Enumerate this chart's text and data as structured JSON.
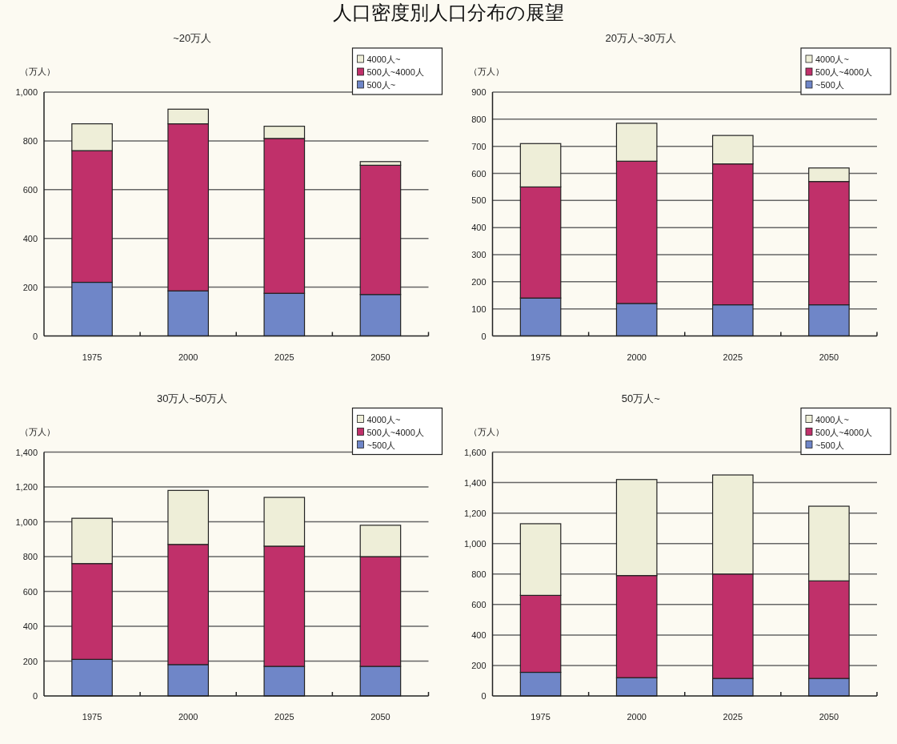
{
  "chart_data": [
    {
      "type": "bar",
      "stacked": true,
      "title": "人口密度別人口分布の展望",
      "subtitle": "~20万人",
      "ylabel": "（万人）",
      "categories": [
        "1975",
        "2000",
        "2025",
        "2050"
      ],
      "legend": "top right",
      "grid": "y",
      "ylim": [
        0,
        1000
      ],
      "yticks": [
        0,
        200,
        400,
        600,
        800,
        {
          "value": 1000,
          "label": "1,000"
        }
      ],
      "series": [
        {
          "name": "500人~",
          "color": "#6f86c8",
          "values": [
            220,
            185,
            175,
            170
          ]
        },
        {
          "name": "500人~4000人",
          "color": "#c0306a",
          "values": [
            540,
            685,
            635,
            530
          ]
        },
        {
          "name": "4000人~",
          "color": "#eeeed8",
          "values": [
            110,
            60,
            50,
            15
          ]
        }
      ]
    },
    {
      "type": "bar",
      "stacked": true,
      "subtitle": "20万人~30万人",
      "ylabel": "（万人）",
      "categories": [
        "1975",
        "2000",
        "2025",
        "2050"
      ],
      "legend": "top right",
      "grid": "y",
      "ylim": [
        0,
        900
      ],
      "yticks": [
        0,
        100,
        200,
        300,
        400,
        500,
        600,
        700,
        800,
        900
      ],
      "series": [
        {
          "name": "~500人",
          "color": "#6f86c8",
          "values": [
            140,
            120,
            115,
            115
          ]
        },
        {
          "name": "500人~4000人",
          "color": "#c0306a",
          "values": [
            410,
            525,
            520,
            455
          ]
        },
        {
          "name": "4000人~",
          "color": "#eeeed8",
          "values": [
            160,
            140,
            105,
            50
          ]
        }
      ]
    },
    {
      "type": "bar",
      "stacked": true,
      "subtitle": "30万人~50万人",
      "ylabel": "（万人）",
      "categories": [
        "1975",
        "2000",
        "2025",
        "2050"
      ],
      "legend": "top right",
      "grid": "y",
      "ylim": [
        0,
        1400
      ],
      "yticks": [
        0,
        200,
        400,
        600,
        800,
        {
          "value": 1000,
          "label": "1,000"
        },
        {
          "value": 1200,
          "label": "1,200"
        },
        {
          "value": 1400,
          "label": "1,400"
        }
      ],
      "series": [
        {
          "name": "~500人",
          "color": "#6f86c8",
          "values": [
            210,
            180,
            170,
            170
          ]
        },
        {
          "name": "500人~4000人",
          "color": "#c0306a",
          "values": [
            550,
            690,
            690,
            630
          ]
        },
        {
          "name": "4000人~",
          "color": "#eeeed8",
          "values": [
            260,
            310,
            280,
            180
          ]
        }
      ]
    },
    {
      "type": "bar",
      "stacked": true,
      "subtitle": "50万人~",
      "ylabel": "（万人）",
      "categories": [
        "1975",
        "2000",
        "2025",
        "2050"
      ],
      "legend": "top right",
      "grid": "y",
      "ylim": [
        0,
        1600
      ],
      "yticks": [
        0,
        200,
        400,
        600,
        800,
        {
          "value": 1000,
          "label": "1,000"
        },
        {
          "value": 1200,
          "label": "1,200"
        },
        {
          "value": 1400,
          "label": "1,400"
        },
        {
          "value": 1600,
          "label": "1,600"
        }
      ],
      "series": [
        {
          "name": "~500人",
          "color": "#6f86c8",
          "values": [
            155,
            120,
            115,
            115
          ]
        },
        {
          "name": "500人~4000人",
          "color": "#c0306a",
          "values": [
            505,
            670,
            685,
            640
          ]
        },
        {
          "name": "4000人~",
          "color": "#eeeed8",
          "values": [
            470,
            630,
            650,
            490
          ]
        }
      ]
    }
  ]
}
